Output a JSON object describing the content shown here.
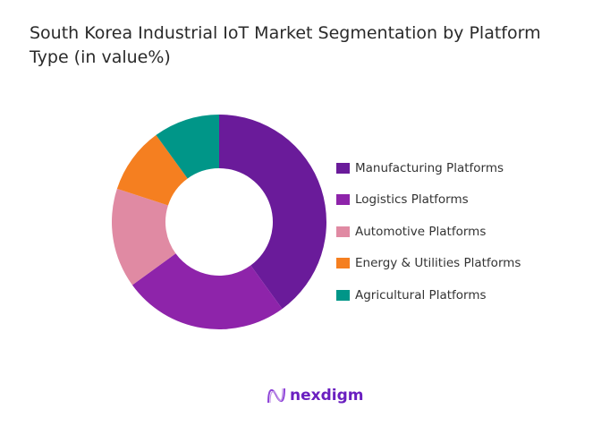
{
  "chart_data": {
    "type": "pie",
    "donut": true,
    "title": "South Korea Industrial IoT Market Segmentation by Platform Type (in value%)",
    "categories": [
      "Manufacturing Platforms",
      "Logistics Platforms",
      "Automotive Platforms",
      "Energy & Utilities Platforms",
      "Agricultural Platforms"
    ],
    "values": [
      40,
      25,
      15,
      10,
      10
    ],
    "colors": [
      "#6a1b9a",
      "#8e24aa",
      "#e08aa3",
      "#f57f20",
      "#009688"
    ],
    "legend_position": "right"
  },
  "brand": {
    "name": "nexdigm"
  }
}
